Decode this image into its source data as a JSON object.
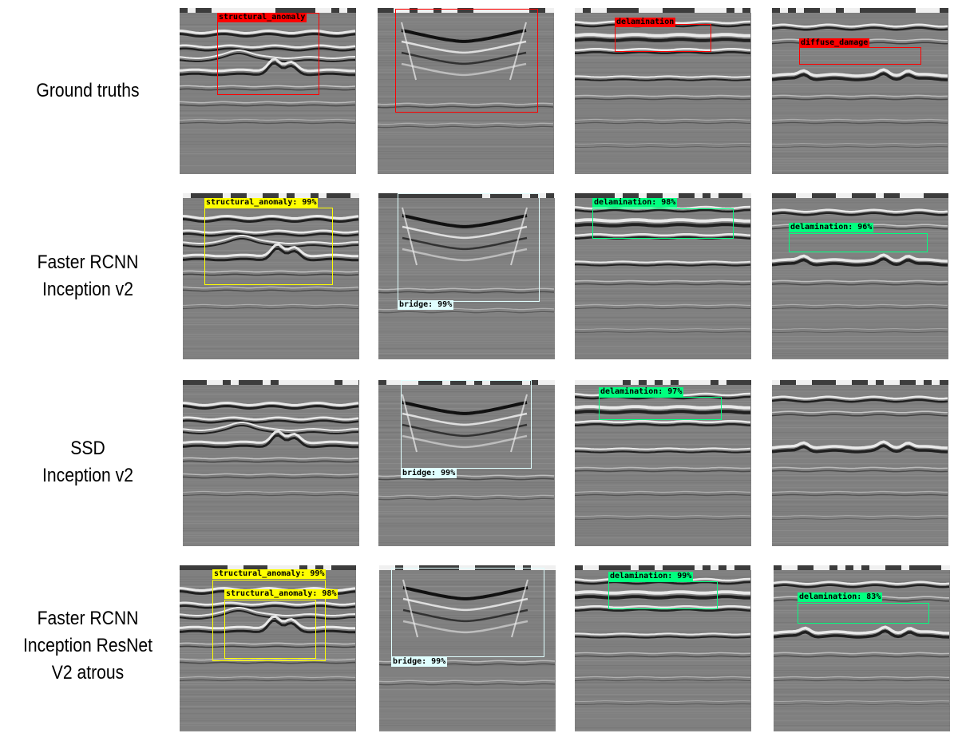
{
  "rows": [
    {
      "label_lines": [
        "Ground truths"
      ]
    },
    {
      "label_lines": [
        "Faster RCNN",
        "Inception v2"
      ]
    },
    {
      "label_lines": [
        "SSD",
        "Inception v2"
      ]
    },
    {
      "label_lines": [
        "Faster RCNN",
        "Inception ResNet",
        "V2 atrous"
      ]
    }
  ],
  "columns": [
    {
      "scene": "anomaly"
    },
    {
      "scene": "bridge"
    },
    {
      "scene": "delamination"
    },
    {
      "scene": "diffuse"
    }
  ],
  "detections": {
    "r0c0": [
      {
        "label": "structural_anomaly",
        "color": "#ff0000"
      }
    ],
    "r0c1": [
      {
        "label": "",
        "color": "#ff0000"
      }
    ],
    "r0c2": [
      {
        "label": "delamination",
        "color": "#ff0000"
      }
    ],
    "r0c3": [
      {
        "label": "diffuse_damage",
        "color": "#ff0000"
      }
    ],
    "r1c0": [
      {
        "label": "structural_anomaly: 99%",
        "color": "#ffff00"
      }
    ],
    "r1c1": [
      {
        "label": "bridge: 99%",
        "color": "#e0ffff"
      }
    ],
    "r1c2": [
      {
        "label": "delamination: 98%",
        "color": "#00ff7f"
      }
    ],
    "r1c3": [
      {
        "label": "delamination: 96%",
        "color": "#00ff7f"
      }
    ],
    "r2c1": [
      {
        "label": "bridge: 99%",
        "color": "#e0ffff"
      }
    ],
    "r2c2": [
      {
        "label": "delamination: 97%",
        "color": "#00ff7f"
      }
    ],
    "r3c0": [
      {
        "label": "structural_anomaly: 99%",
        "color": "#ffff00"
      },
      {
        "label": "structural_anomaly: 98%",
        "color": "#ffff00"
      }
    ],
    "r3c1": [
      {
        "label": "bridge: 99%",
        "color": "#e0ffff"
      }
    ],
    "r3c2": [
      {
        "label": "delamination: 99%",
        "color": "#00ff7f"
      }
    ],
    "r3c3": [
      {
        "label": "delamination: 83%",
        "color": "#00ff7f"
      }
    ]
  }
}
